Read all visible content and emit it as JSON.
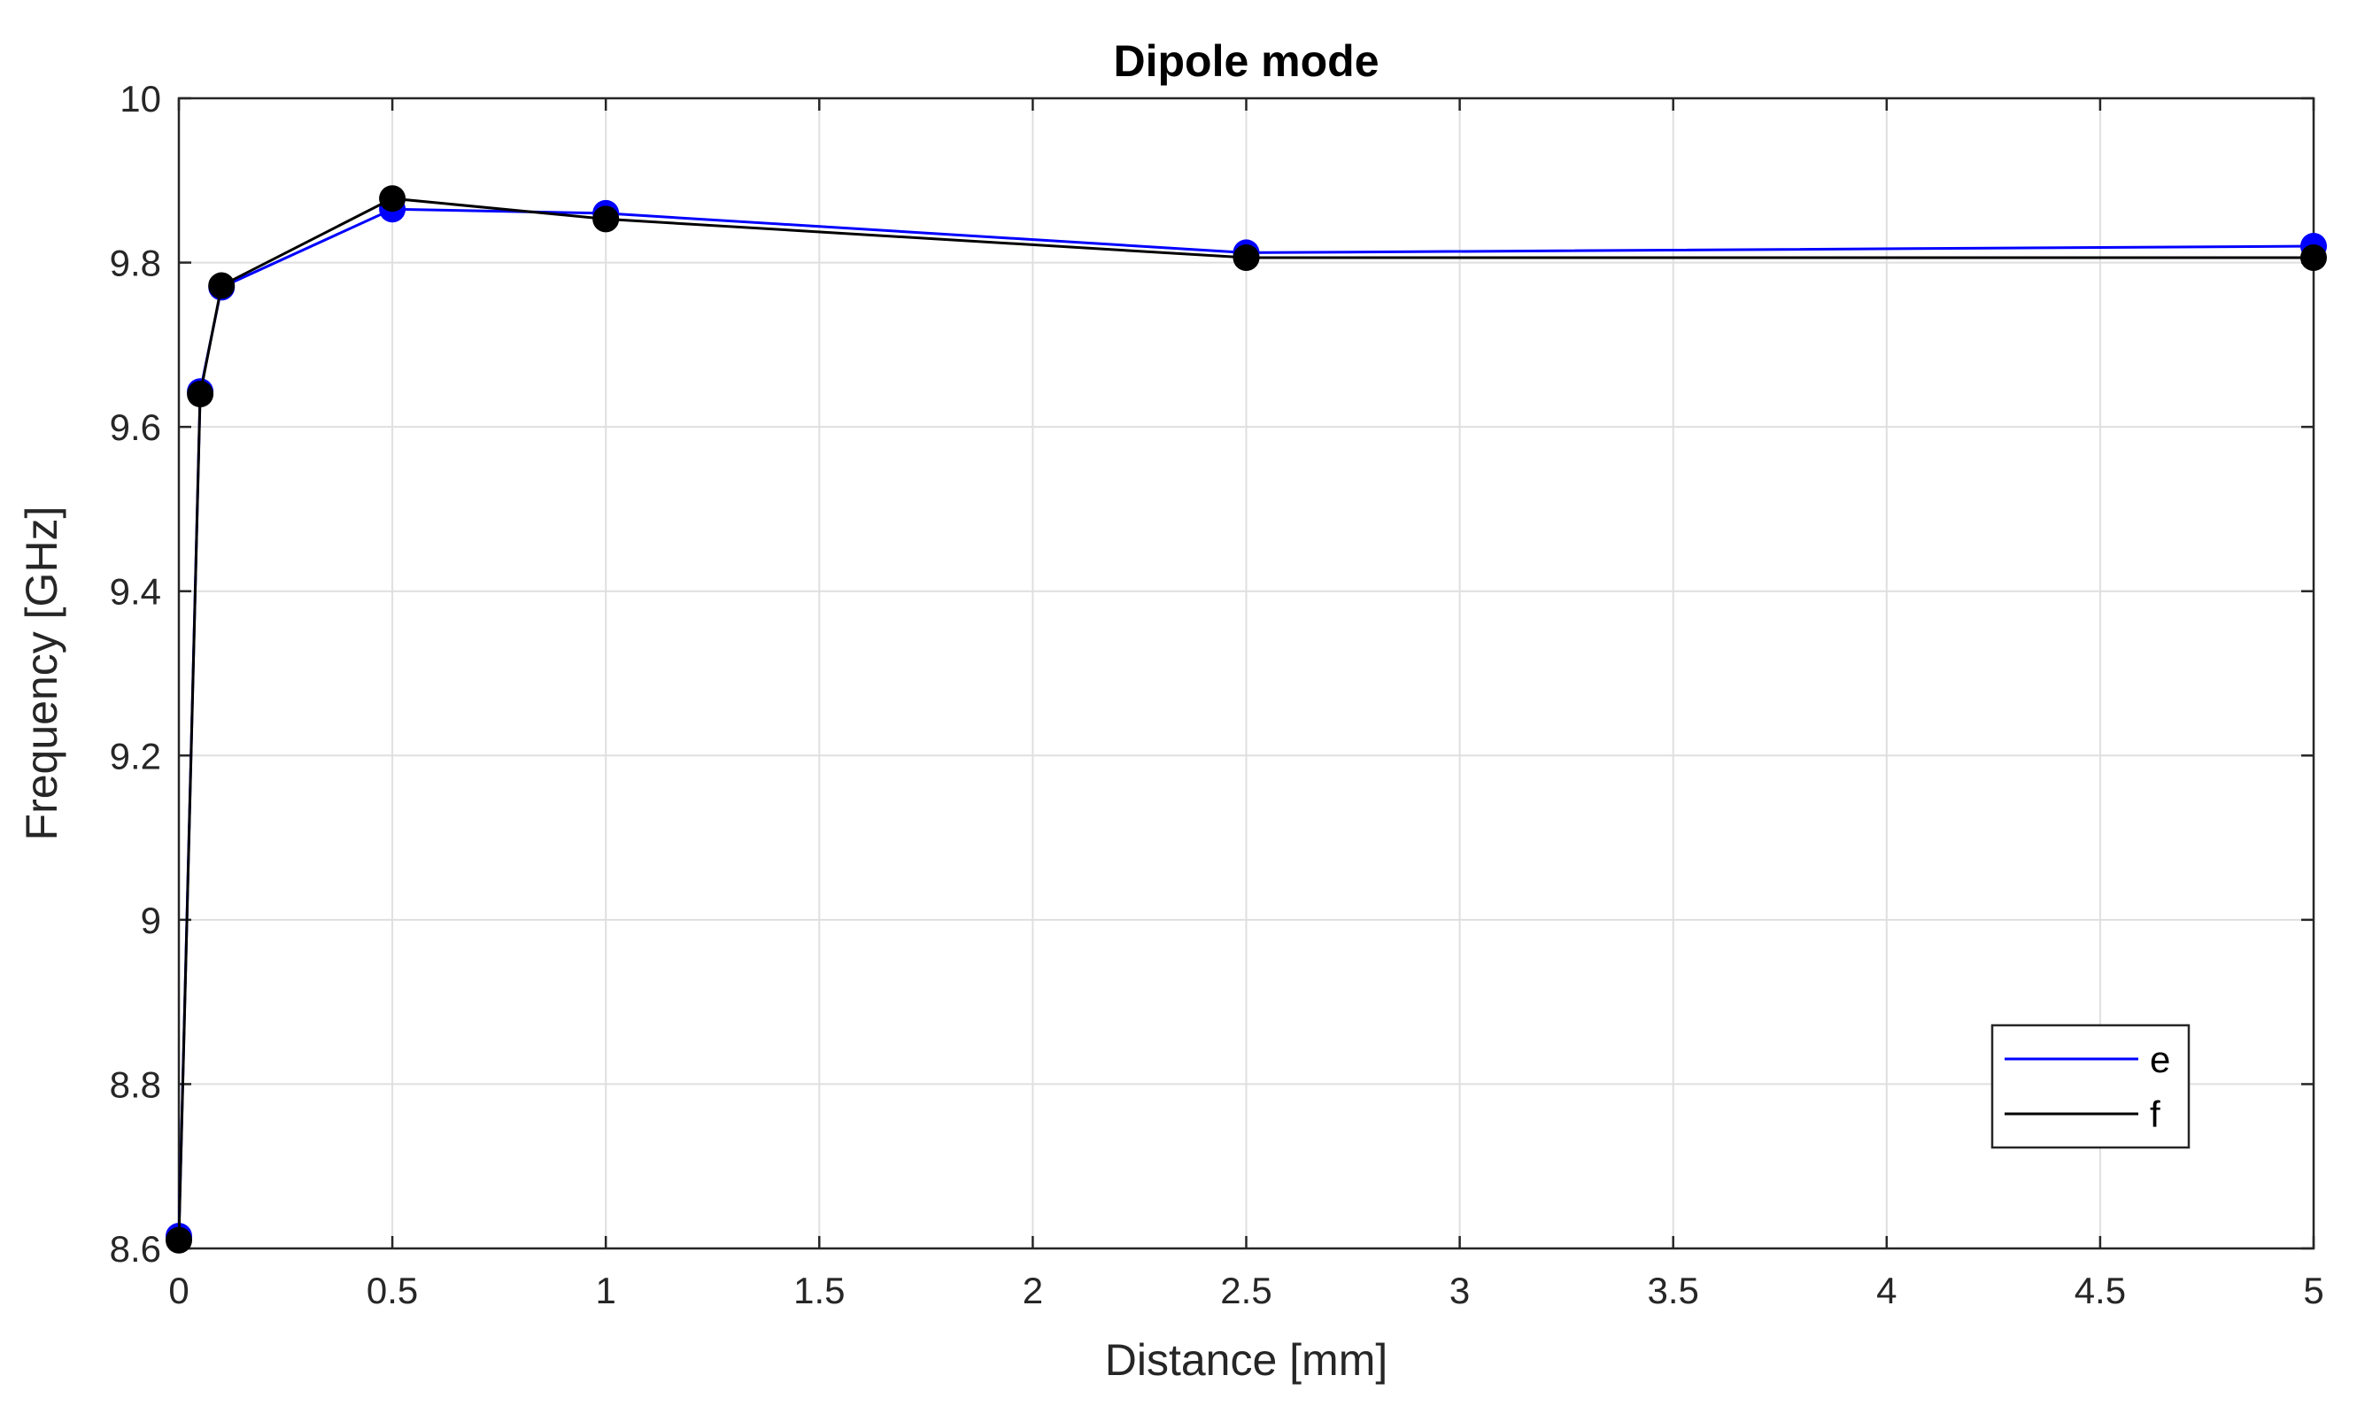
{
  "chart_data": {
    "type": "line",
    "title": "Dipole mode",
    "xlabel": "Distance [mm]",
    "ylabel": "Frequency [GHz]",
    "xlim": [
      0,
      5
    ],
    "ylim": [
      8.6,
      10
    ],
    "xticks": [
      0,
      0.5,
      1,
      1.5,
      2,
      2.5,
      3,
      3.5,
      4,
      4.5,
      5
    ],
    "xtick_labels": [
      "0",
      "0.5",
      "1",
      "1.5",
      "2",
      "2.5",
      "3",
      "3.5",
      "4",
      "4.5",
      "5"
    ],
    "yticks": [
      8.6,
      8.8,
      9,
      9.2,
      9.4,
      9.6,
      9.8,
      10
    ],
    "ytick_labels": [
      "8.6",
      "8.8",
      "9",
      "9.2",
      "9.4",
      "9.6",
      "9.8",
      "10"
    ],
    "grid": true,
    "legend_position": "bottom-right",
    "series": [
      {
        "name": "e",
        "color": "#0000ff",
        "x": [
          0,
          0.05,
          0.1,
          0.5,
          1,
          2.5,
          5
        ],
        "y": [
          8.615,
          9.643,
          9.77,
          9.865,
          9.86,
          9.812,
          9.82
        ]
      },
      {
        "name": "f",
        "color": "#000000",
        "x": [
          0,
          0.05,
          0.1,
          0.5,
          1,
          2.5,
          5
        ],
        "y": [
          8.61,
          9.64,
          9.772,
          9.878,
          9.853,
          9.806,
          9.806
        ]
      }
    ]
  }
}
